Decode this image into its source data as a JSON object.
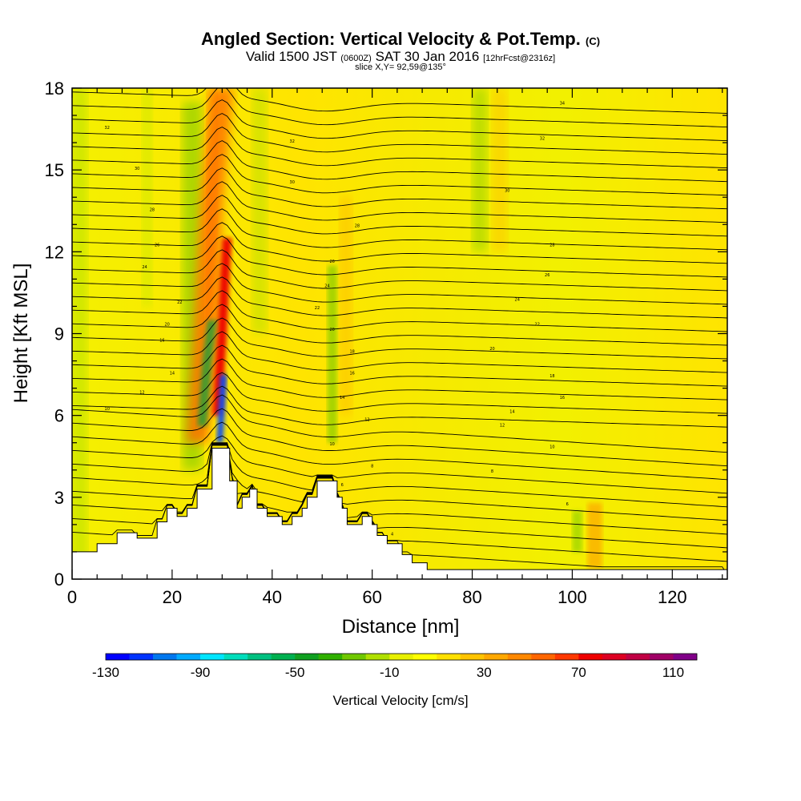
{
  "header": {
    "title": "Angled Section: Vertical Velocity & Pot.Temp.",
    "title_tag": "(C)",
    "valid_prefix": "Valid 1500 JST",
    "valid_z": "(0600Z)",
    "valid_date": "SAT 30 Jan 2016",
    "valid_fcst": "[12hrFcst@2316z]",
    "slice": "slice X,Y= 92,59@135°"
  },
  "chart_data": {
    "type": "heatmap",
    "xlabel": "Distance [nm]",
    "ylabel": "Height [Kft MSL]",
    "xlim": [
      0,
      131
    ],
    "ylim": [
      0,
      18
    ],
    "x_ticks": [
      0,
      20,
      40,
      60,
      80,
      100,
      120
    ],
    "y_ticks": [
      0,
      3,
      6,
      9,
      12,
      15,
      18
    ],
    "colorbar": {
      "title": "Vertical Velocity [cm/s]",
      "min": -130,
      "max": 120,
      "step": 10,
      "tick_labels": [
        -130,
        -90,
        -50,
        -10,
        30,
        70,
        110
      ],
      "colors": [
        "#0000ff",
        "#0033ff",
        "#0077ee",
        "#00aaff",
        "#00e5ff",
        "#00ddbb",
        "#00c080",
        "#00b050",
        "#10a020",
        "#30b000",
        "#70c800",
        "#b0e000",
        "#e8f000",
        "#ffff00",
        "#ffe000",
        "#ffc400",
        "#ffa800",
        "#ff8800",
        "#ff6600",
        "#ff3800",
        "#ee0000",
        "#dd0022",
        "#c00044",
        "#a00066",
        "#800088"
      ]
    },
    "terrain": [
      [
        0,
        1.0
      ],
      [
        5,
        1.0
      ],
      [
        5,
        1.3
      ],
      [
        9,
        1.3
      ],
      [
        9,
        1.7
      ],
      [
        13,
        1.7
      ],
      [
        13,
        1.5
      ],
      [
        17,
        1.5
      ],
      [
        17,
        2.1
      ],
      [
        19,
        2.1
      ],
      [
        19,
        2.6
      ],
      [
        21,
        2.6
      ],
      [
        21,
        2.3
      ],
      [
        23,
        2.3
      ],
      [
        23,
        2.6
      ],
      [
        25,
        2.6
      ],
      [
        25,
        3.3
      ],
      [
        28,
        3.3
      ],
      [
        28,
        4.8
      ],
      [
        31.5,
        4.8
      ],
      [
        31.5,
        3.6
      ],
      [
        33,
        3.6
      ],
      [
        33,
        2.6
      ],
      [
        34,
        2.6
      ],
      [
        34,
        3.0
      ],
      [
        35.5,
        3.0
      ],
      [
        35.5,
        3.3
      ],
      [
        37,
        3.3
      ],
      [
        37,
        2.6
      ],
      [
        39,
        2.6
      ],
      [
        39,
        2.3
      ],
      [
        42,
        2.3
      ],
      [
        42,
        2.0
      ],
      [
        44,
        2.0
      ],
      [
        44,
        2.3
      ],
      [
        46,
        2.3
      ],
      [
        46,
        2.6
      ],
      [
        47,
        2.6
      ],
      [
        47,
        3.0
      ],
      [
        49,
        3.0
      ],
      [
        49,
        3.6
      ],
      [
        53,
        3.6
      ],
      [
        53,
        3.0
      ],
      [
        54,
        3.0
      ],
      [
        54,
        2.6
      ],
      [
        55,
        2.6
      ],
      [
        55,
        2.0
      ],
      [
        58,
        2.0
      ],
      [
        58,
        2.3
      ],
      [
        60,
        2.3
      ],
      [
        60,
        2.0
      ],
      [
        61,
        2.0
      ],
      [
        61,
        1.6
      ],
      [
        63,
        1.6
      ],
      [
        63,
        1.3
      ],
      [
        66,
        1.3
      ],
      [
        66,
        0.9
      ],
      [
        68,
        0.9
      ],
      [
        68,
        0.6
      ],
      [
        71,
        0.6
      ],
      [
        71,
        0.35
      ],
      [
        131,
        0.35
      ],
      [
        131,
        0
      ]
    ],
    "updraft_core": [
      [
        29,
        6
      ],
      [
        30,
        9
      ],
      [
        30.5,
        11
      ],
      [
        31,
        12.5
      ]
    ],
    "downdraft_core": [
      [
        29.5,
        5
      ],
      [
        30,
        6.5
      ],
      [
        30.3,
        7.5
      ]
    ],
    "isentrope_labels": [
      {
        "x": 7,
        "y": 6.2,
        "t": "10"
      },
      {
        "x": 14,
        "y": 6.8,
        "t": "12"
      },
      {
        "x": 20,
        "y": 7.5,
        "t": "14"
      },
      {
        "x": 18,
        "y": 8.7,
        "t": "16"
      },
      {
        "x": 19,
        "y": 9.3,
        "t": "20"
      },
      {
        "x": 21.5,
        "y": 10.1,
        "t": "22"
      },
      {
        "x": 14.5,
        "y": 11.4,
        "t": "24"
      },
      {
        "x": 17,
        "y": 12.2,
        "t": "26"
      },
      {
        "x": 16,
        "y": 13.5,
        "t": "28"
      },
      {
        "x": 13,
        "y": 15.0,
        "t": "30"
      },
      {
        "x": 7,
        "y": 16.5,
        "t": "32"
      },
      {
        "x": 44,
        "y": 16.0,
        "t": "32"
      },
      {
        "x": 44,
        "y": 14.5,
        "t": "30"
      },
      {
        "x": 57,
        "y": 12.9,
        "t": "28"
      },
      {
        "x": 52,
        "y": 11.6,
        "t": "26"
      },
      {
        "x": 51,
        "y": 10.7,
        "t": "24"
      },
      {
        "x": 49,
        "y": 9.9,
        "t": "22"
      },
      {
        "x": 52,
        "y": 9.1,
        "t": "20"
      },
      {
        "x": 56,
        "y": 8.3,
        "t": "18"
      },
      {
        "x": 56,
        "y": 7.5,
        "t": "16"
      },
      {
        "x": 54,
        "y": 6.6,
        "t": "14"
      },
      {
        "x": 59,
        "y": 5.8,
        "t": "12"
      },
      {
        "x": 52,
        "y": 4.9,
        "t": "10"
      },
      {
        "x": 60,
        "y": 4.1,
        "t": "8"
      },
      {
        "x": 54,
        "y": 3.4,
        "t": "6"
      },
      {
        "x": 64,
        "y": 1.6,
        "t": "4"
      },
      {
        "x": 98,
        "y": 17.4,
        "t": "34"
      },
      {
        "x": 94,
        "y": 16.1,
        "t": "32"
      },
      {
        "x": 87,
        "y": 14.2,
        "t": "30"
      },
      {
        "x": 96,
        "y": 12.2,
        "t": "28"
      },
      {
        "x": 95,
        "y": 11.1,
        "t": "26"
      },
      {
        "x": 89,
        "y": 10.2,
        "t": "24"
      },
      {
        "x": 93,
        "y": 9.3,
        "t": "22"
      },
      {
        "x": 84,
        "y": 8.4,
        "t": "20"
      },
      {
        "x": 96,
        "y": 7.4,
        "t": "18"
      },
      {
        "x": 98,
        "y": 6.6,
        "t": "16"
      },
      {
        "x": 88,
        "y": 6.1,
        "t": "14"
      },
      {
        "x": 86,
        "y": 5.6,
        "t": "12"
      },
      {
        "x": 96,
        "y": 4.8,
        "t": "10"
      },
      {
        "x": 84,
        "y": 3.9,
        "t": "8"
      },
      {
        "x": 99,
        "y": 2.7,
        "t": "6"
      }
    ]
  }
}
